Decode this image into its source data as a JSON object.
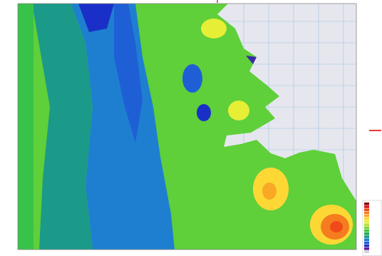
{
  "legend": {
    "colors": [
      "#8b0000",
      "#d7191c",
      "#f04a1a",
      "#f57c1f",
      "#f9a825",
      "#fdd835",
      "#e6ee35",
      "#b8e23a",
      "#7fd43c",
      "#3fc23f",
      "#22a85a",
      "#1b9a8a",
      "#1e7fd0",
      "#1f5fd6",
      "#1a2fc8",
      "#6a1b9a",
      "#d0d0d8"
    ]
  }
}
